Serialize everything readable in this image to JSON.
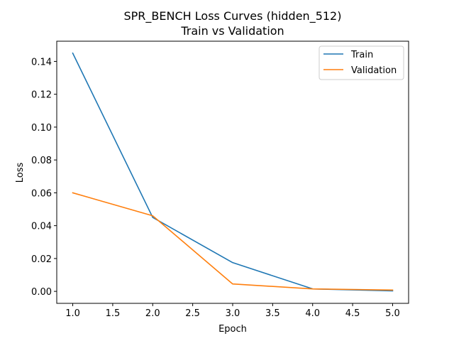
{
  "chart_data": {
    "type": "line",
    "title": "SPR_BENCH Loss Curves (hidden_512)",
    "subtitle": "Train vs Validation",
    "xlabel": "Epoch",
    "ylabel": "Loss",
    "xlim": [
      0.8,
      5.2
    ],
    "ylim": [
      -0.0073,
      0.1523
    ],
    "x_ticks": [
      1.0,
      1.5,
      2.0,
      2.5,
      3.0,
      3.5,
      4.0,
      4.5,
      5.0
    ],
    "x_tick_labels": [
      "1.0",
      "1.5",
      "2.0",
      "2.5",
      "3.0",
      "3.5",
      "4.0",
      "4.5",
      "5.0"
    ],
    "y_ticks": [
      0.0,
      0.02,
      0.04,
      0.06,
      0.08,
      0.1,
      0.12,
      0.14
    ],
    "y_tick_labels": [
      "0.00",
      "0.02",
      "0.04",
      "0.06",
      "0.08",
      "0.10",
      "0.12",
      "0.14"
    ],
    "grid": false,
    "legend_position": "top-right",
    "x": [
      1,
      2,
      3,
      4,
      5
    ],
    "series": [
      {
        "name": "Train",
        "color": "#1f77b4",
        "values": [
          0.145,
          0.045,
          0.0175,
          0.0015,
          0.0003
        ]
      },
      {
        "name": "Validation",
        "color": "#ff7f0e",
        "values": [
          0.06,
          0.046,
          0.0045,
          0.0015,
          0.0008
        ]
      }
    ]
  }
}
